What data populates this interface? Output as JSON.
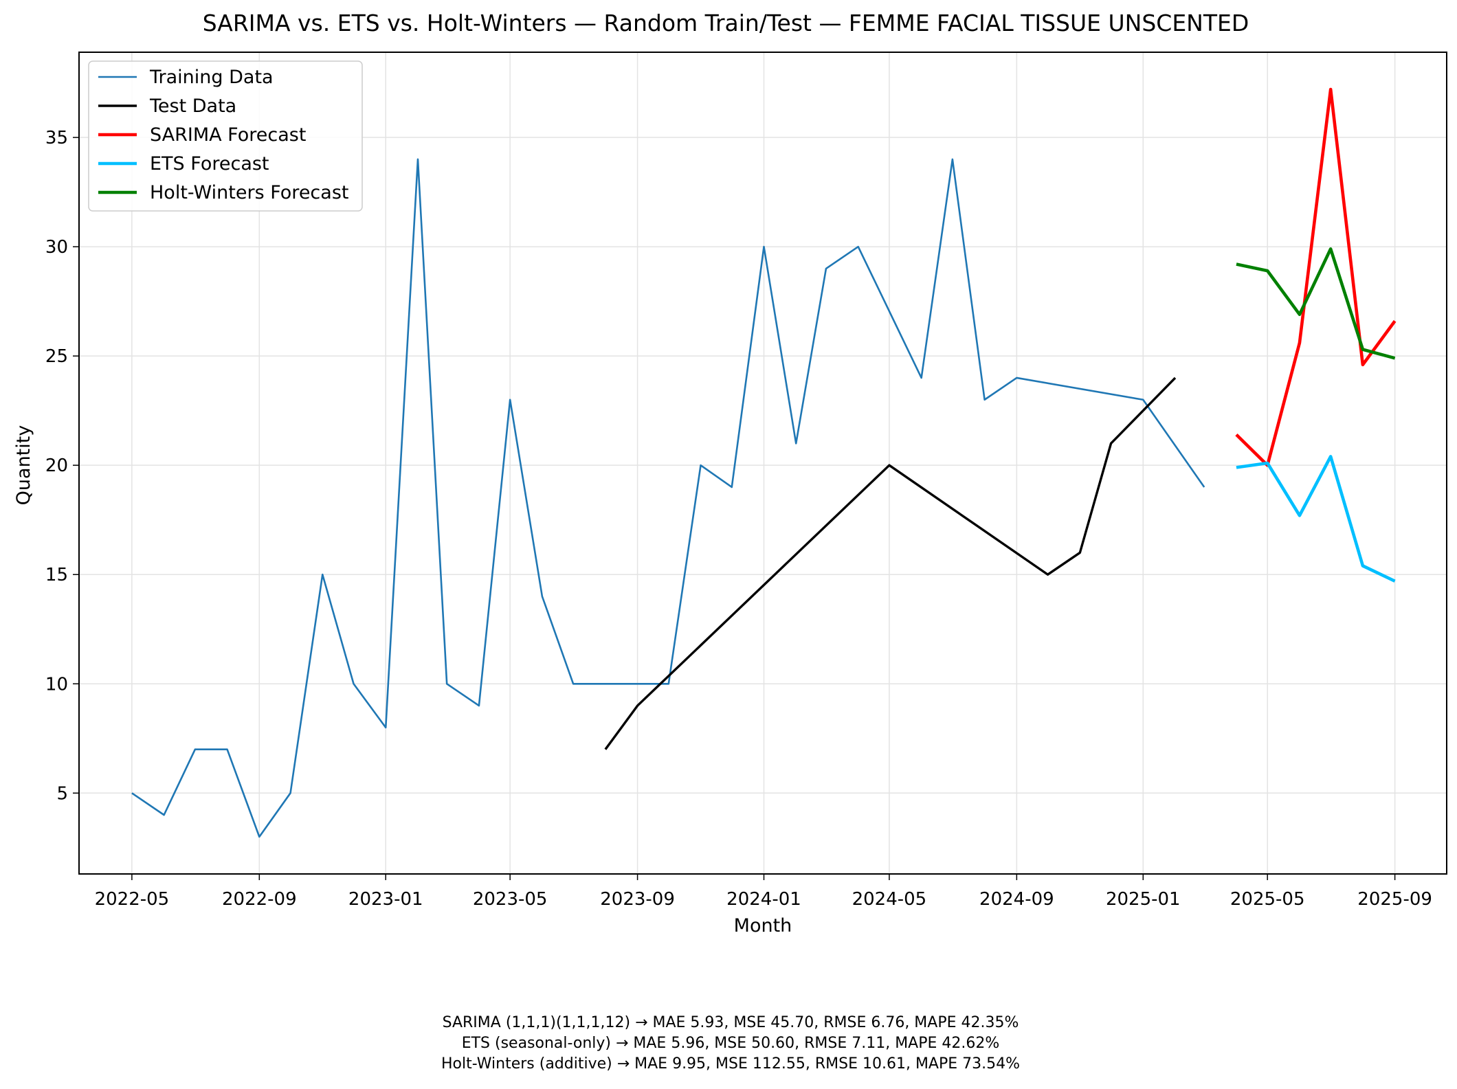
{
  "chart_data": {
    "type": "line",
    "title": "SARIMA vs. ETS vs. Holt-Winters — Random Train/Test — FEMME FACIAL TISSUE UNSCENTED",
    "xlabel": "Month",
    "ylabel": "Quantity",
    "xlim": [
      "2022-03-11",
      "2025-10-21"
    ],
    "ylim": [
      1.3,
      38.9
    ],
    "x_ticks": [
      "2022-05",
      "2022-09",
      "2023-01",
      "2023-05",
      "2023-09",
      "2024-01",
      "2024-05",
      "2024-09",
      "2025-01",
      "2025-05",
      "2025-09"
    ],
    "y_ticks": [
      5,
      10,
      15,
      20,
      25,
      30,
      35
    ],
    "grid": true,
    "legend_position": "top-left",
    "series": [
      {
        "name": "Training Data",
        "color": "#1f77b4",
        "line_width": "thin",
        "x": [
          "2022-05",
          "2022-06",
          "2022-07",
          "2022-08",
          "2022-09",
          "2022-10",
          "2022-11",
          "2022-12",
          "2023-01",
          "2023-02",
          "2023-03",
          "2023-04",
          "2023-05",
          "2023-06",
          "2023-07",
          "2023-10",
          "2023-11",
          "2023-12",
          "2024-01",
          "2024-02",
          "2024-03",
          "2024-04",
          "2024-06",
          "2024-07",
          "2024-08",
          "2024-09",
          "2025-01",
          "2025-03"
        ],
        "y": [
          5,
          4,
          7,
          7,
          3,
          5,
          15,
          10,
          8,
          34,
          10,
          9,
          23,
          14,
          10,
          10,
          20,
          19,
          30,
          21,
          29,
          30,
          24,
          34,
          23,
          24,
          23,
          19
        ]
      },
      {
        "name": "Test Data",
        "color": "#000000",
        "line_width": "medium",
        "x": [
          "2023-08",
          "2023-09",
          "2024-05",
          "2024-10",
          "2024-11",
          "2024-12",
          "2025-02"
        ],
        "y": [
          7,
          9,
          20,
          15,
          16,
          21,
          24
        ]
      },
      {
        "name": "SARIMA Forecast",
        "color": "#ff0000",
        "line_width": "thick",
        "x": [
          "2025-04",
          "2025-05",
          "2025-06",
          "2025-07",
          "2025-08",
          "2025-09"
        ],
        "y": [
          21.4,
          20.0,
          25.6,
          37.2,
          24.6,
          26.6
        ]
      },
      {
        "name": "ETS Forecast",
        "color": "#00bfff",
        "line_width": "thick",
        "x": [
          "2025-04",
          "2025-05",
          "2025-06",
          "2025-07",
          "2025-08",
          "2025-09"
        ],
        "y": [
          19.9,
          20.1,
          17.7,
          20.4,
          15.4,
          14.7
        ]
      },
      {
        "name": "Holt-Winters Forecast",
        "color": "#008000",
        "line_width": "thick",
        "x": [
          "2025-04",
          "2025-05",
          "2025-06",
          "2025-07",
          "2025-08",
          "2025-09"
        ],
        "y": [
          29.2,
          28.9,
          26.9,
          29.9,
          25.3,
          24.9
        ]
      }
    ],
    "annotations": [
      "SARIMA (1,1,1)(1,1,1,12) → MAE 5.93, MSE 45.70, RMSE 6.76, MAPE 42.35%",
      "ETS (seasonal-only) → MAE 5.96, MSE 50.60, RMSE 7.11, MAPE 42.62%",
      "Holt-Winters (additive) → MAE 9.95, MSE 112.55, RMSE 10.61, MAPE 73.54%"
    ]
  }
}
